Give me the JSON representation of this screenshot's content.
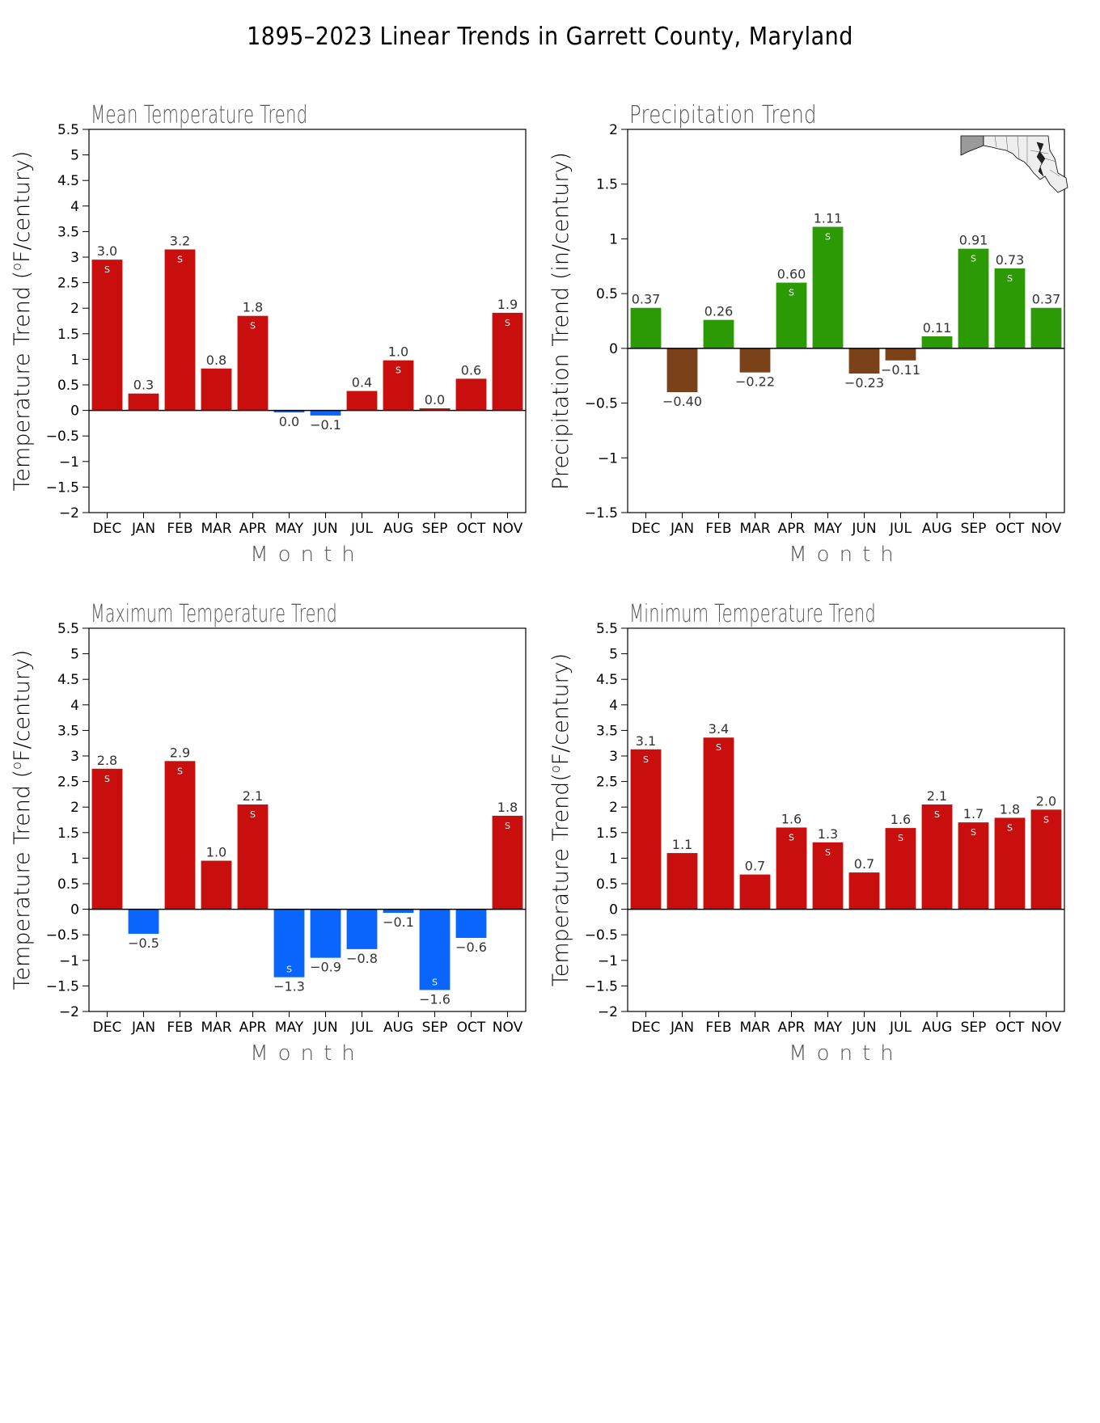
{
  "page": {
    "title": "1895–2023 Linear Trends in Garrett County, Maryland"
  },
  "colors": {
    "warm": "#c90e0e",
    "cool": "#0a65fc",
    "wet": "#2b9a05",
    "dry": "#7b4219",
    "text_gray": "#555555",
    "frame": "#000000"
  },
  "significance_marker": "S",
  "chart_data": [
    {
      "id": "mean",
      "type": "bar",
      "title": "Mean Temperature Trend",
      "ylabel_prefix": "Temperature Trend (",
      "ylabel_deg": "o",
      "ylabel_suffix": "F/century)",
      "xlabel": "M o n t h",
      "categories": [
        "DEC",
        "JAN",
        "FEB",
        "MAR",
        "APR",
        "MAY",
        "JUN",
        "JUL",
        "AUG",
        "SEP",
        "OCT",
        "NOV"
      ],
      "values": [
        2.95,
        0.33,
        3.15,
        0.82,
        1.85,
        -0.04,
        -0.1,
        0.38,
        0.98,
        0.04,
        0.62,
        1.91
      ],
      "labels": [
        "3.0",
        "0.3",
        "3.2",
        "0.8",
        "1.8",
        "0.0",
        "−0.1",
        "0.4",
        "1.0",
        "0.0",
        "0.6",
        "1.9"
      ],
      "significant": [
        true,
        false,
        true,
        false,
        true,
        false,
        false,
        false,
        true,
        false,
        false,
        true
      ],
      "ylim": [
        -2,
        5.5
      ],
      "yticks": [
        -2,
        -1.5,
        -1,
        -0.5,
        0,
        0.5,
        1,
        1.5,
        2,
        2.5,
        3,
        3.5,
        4,
        4.5,
        5,
        5.5
      ],
      "ytick_labels": [
        "−2",
        "−1.5",
        "−1",
        "−0.5",
        "0",
        "0.5",
        "1",
        "1.5",
        "2",
        "2.5",
        "3",
        "3.5",
        "4",
        "4.5",
        "5",
        "5.5"
      ],
      "palette": [
        "warm",
        "cool"
      ]
    },
    {
      "id": "precip",
      "type": "bar",
      "title": "Precipitation Trend",
      "ylabel": "Precipitation Trend (in/century)",
      "xlabel": "M o n t h",
      "categories": [
        "DEC",
        "JAN",
        "FEB",
        "MAR",
        "APR",
        "MAY",
        "JUN",
        "JUL",
        "AUG",
        "SEP",
        "OCT",
        "NOV"
      ],
      "values": [
        0.37,
        -0.4,
        0.26,
        -0.22,
        0.6,
        1.11,
        -0.23,
        -0.11,
        0.11,
        0.91,
        0.73,
        0.37
      ],
      "labels": [
        "0.37",
        "−0.40",
        "0.26",
        "−0.22",
        "0.60",
        "1.11",
        "−0.23",
        "−0.11",
        "0.11",
        "0.91",
        "0.73",
        "0.37"
      ],
      "significant": [
        false,
        false,
        false,
        false,
        true,
        true,
        false,
        false,
        false,
        true,
        true,
        false
      ],
      "ylim": [
        -1.5,
        2
      ],
      "yticks": [
        -1.5,
        -1,
        -0.5,
        0,
        0.5,
        1,
        1.5,
        2
      ],
      "ytick_labels": [
        "−1.5",
        "−1",
        "−0.5",
        "0",
        "0.5",
        "1",
        "1.5",
        "2"
      ],
      "palette": [
        "wet",
        "dry"
      ]
    },
    {
      "id": "max",
      "type": "bar",
      "title": "Maximum Temperature Trend",
      "ylabel_prefix": "Temperature Trend (",
      "ylabel_deg": "o",
      "ylabel_suffix": "F/century)",
      "xlabel": "M o n t h",
      "categories": [
        "DEC",
        "JAN",
        "FEB",
        "MAR",
        "APR",
        "MAY",
        "JUN",
        "JUL",
        "AUG",
        "SEP",
        "OCT",
        "NOV"
      ],
      "values": [
        2.75,
        -0.48,
        2.9,
        0.95,
        2.05,
        -1.33,
        -0.95,
        -0.78,
        -0.07,
        -1.58,
        -0.56,
        1.83
      ],
      "labels": [
        "2.8",
        "−0.5",
        "2.9",
        "1.0",
        "2.1",
        "−1.3",
        "−0.9",
        "−0.8",
        "−0.1",
        "−1.6",
        "−0.6",
        "1.8"
      ],
      "significant": [
        true,
        false,
        true,
        false,
        true,
        true,
        false,
        false,
        false,
        true,
        false,
        true
      ],
      "ylim": [
        -2,
        5.5
      ],
      "yticks": [
        -2,
        -1.5,
        -1,
        -0.5,
        0,
        0.5,
        1,
        1.5,
        2,
        2.5,
        3,
        3.5,
        4,
        4.5,
        5,
        5.5
      ],
      "ytick_labels": [
        "−2",
        "−1.5",
        "−1",
        "−0.5",
        "0",
        "0.5",
        "1",
        "1.5",
        "2",
        "2.5",
        "3",
        "3.5",
        "4",
        "4.5",
        "5",
        "5.5"
      ],
      "palette": [
        "warm",
        "cool"
      ]
    },
    {
      "id": "min",
      "type": "bar",
      "title": "Minimum Temperature Trend",
      "ylabel_prefix": "Temperature Trend(",
      "ylabel_deg": "o",
      "ylabel_suffix": "F/century)",
      "xlabel": "M o n t h",
      "categories": [
        "DEC",
        "JAN",
        "FEB",
        "MAR",
        "APR",
        "MAY",
        "JUN",
        "JUL",
        "AUG",
        "SEP",
        "OCT",
        "NOV"
      ],
      "values": [
        3.13,
        1.1,
        3.36,
        0.68,
        1.6,
        1.31,
        0.72,
        1.59,
        2.05,
        1.7,
        1.79,
        1.95
      ],
      "labels": [
        "3.1",
        "1.1",
        "3.4",
        "0.7",
        "1.6",
        "1.3",
        "0.7",
        "1.6",
        "2.1",
        "1.7",
        "1.8",
        "2.0"
      ],
      "significant": [
        true,
        false,
        true,
        false,
        true,
        true,
        false,
        true,
        true,
        true,
        true,
        true
      ],
      "ylim": [
        -2,
        5.5
      ],
      "yticks": [
        -2,
        -1.5,
        -1,
        -0.5,
        0,
        0.5,
        1,
        1.5,
        2,
        2.5,
        3,
        3.5,
        4,
        4.5,
        5,
        5.5
      ],
      "ytick_labels": [
        "−2",
        "−1.5",
        "−1",
        "−0.5",
        "0",
        "0.5",
        "1",
        "1.5",
        "2",
        "2.5",
        "3",
        "3.5",
        "4",
        "4.5",
        "5",
        "5.5"
      ],
      "palette": [
        "warm",
        "cool"
      ]
    }
  ]
}
